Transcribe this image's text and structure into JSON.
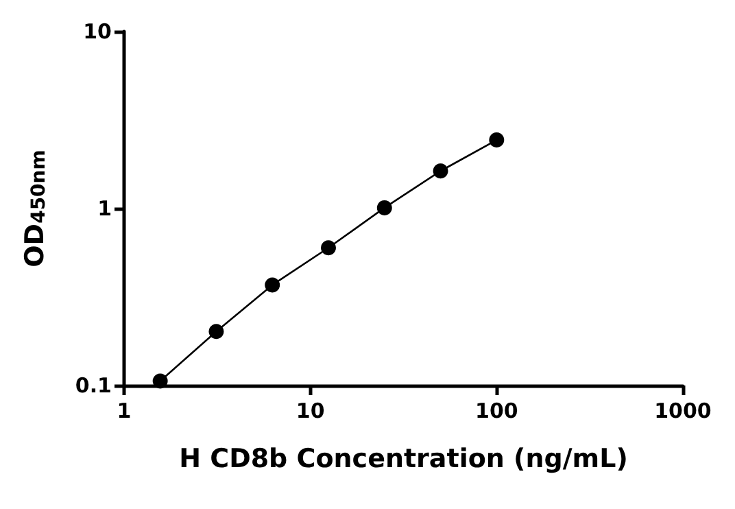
{
  "chart_data": {
    "type": "line",
    "xlabel": "H CD8b Concentration (ng/mL)",
    "ylabel": "OD$_{450nm}$",
    "log": "xy",
    "xlim": [
      1,
      1000
    ],
    "xticks": [
      1,
      10,
      100,
      1000
    ],
    "ylim": [
      0.1,
      10
    ],
    "yticks": [
      0.1,
      1,
      10
    ],
    "x": [
      1.5625,
      3.125,
      6.25,
      12.5,
      25,
      50,
      100
    ],
    "series": [
      {
        "color": "#000000",
        "values": [
          0.106,
          0.202,
          0.37,
          0.6,
          1.01,
          1.63,
          2.44
        ]
      }
    ],
    "marker": "circle",
    "line_style": "solid",
    "grid": false
  }
}
